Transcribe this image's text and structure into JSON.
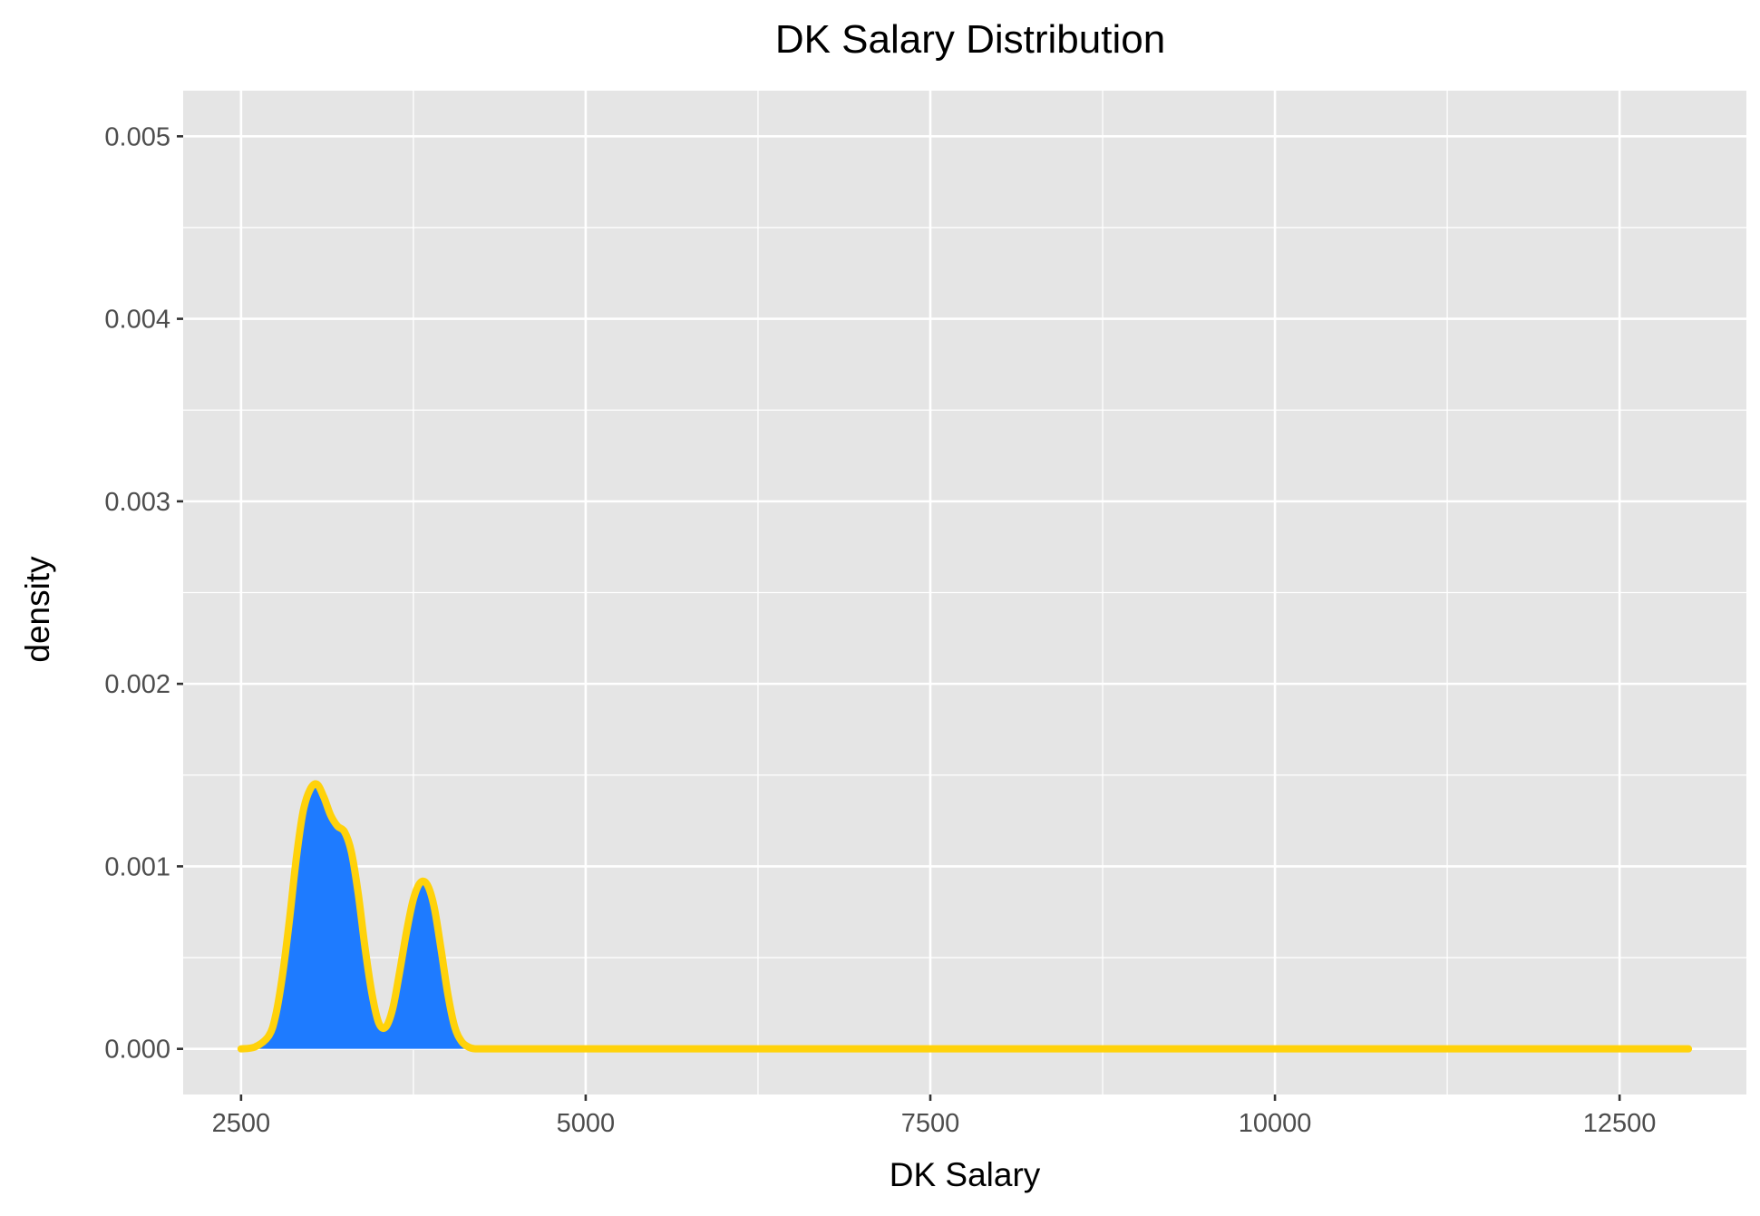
{
  "chart_data": {
    "type": "area",
    "title": "DK Salary Distribution",
    "xlabel": "DK Salary",
    "ylabel": "density",
    "xlim": [
      2080,
      13420
    ],
    "ylim": [
      -0.00025,
      0.00525
    ],
    "x_ticks": [
      2500,
      5000,
      7500,
      10000,
      12500
    ],
    "x_tick_labels": [
      "2500",
      "5000",
      "7500",
      "10000",
      "12500"
    ],
    "y_ticks": [
      0,
      0.001,
      0.002,
      0.003,
      0.004,
      0.005
    ],
    "y_tick_labels": [
      "0.000",
      "0.001",
      "0.002",
      "0.003",
      "0.004",
      "0.005"
    ],
    "grid": true,
    "legend": "none",
    "colors": {
      "panel_background": "#e5e5e5",
      "grid": "#ffffff",
      "fill": "#1e7bff",
      "line": "#ffd20a"
    },
    "series": [
      {
        "x": [
          2500,
          2600,
          2700,
          2750,
          2800,
          2850,
          2900,
          2950,
          3000,
          3050,
          3100,
          3150,
          3200,
          3250,
          3300,
          3350,
          3400,
          3450,
          3500,
          3550,
          3600,
          3650,
          3700,
          3750,
          3800,
          3850,
          3900,
          3950,
          4000,
          4050,
          4100,
          4150,
          4200,
          4300,
          4400,
          5000,
          6000,
          7000,
          8000,
          9000,
          10000,
          11000,
          12000,
          13000
        ],
        "y": [
          0.0,
          1e-05,
          7e-05,
          0.00018,
          0.0004,
          0.0007,
          0.00104,
          0.0013,
          0.00142,
          0.00145,
          0.00138,
          0.00128,
          0.00122,
          0.00119,
          0.00108,
          0.00085,
          0.00055,
          0.0003,
          0.00014,
          0.00012,
          0.00022,
          0.00042,
          0.00064,
          0.00082,
          0.00091,
          0.0009,
          0.00078,
          0.00055,
          0.0003,
          0.00012,
          4e-05,
          1e-05,
          0.0,
          0.0,
          0.0,
          0.0,
          0.0,
          0.0,
          0.0,
          0.0,
          0.0,
          0.0,
          0.0,
          0.0
        ]
      }
    ]
  }
}
